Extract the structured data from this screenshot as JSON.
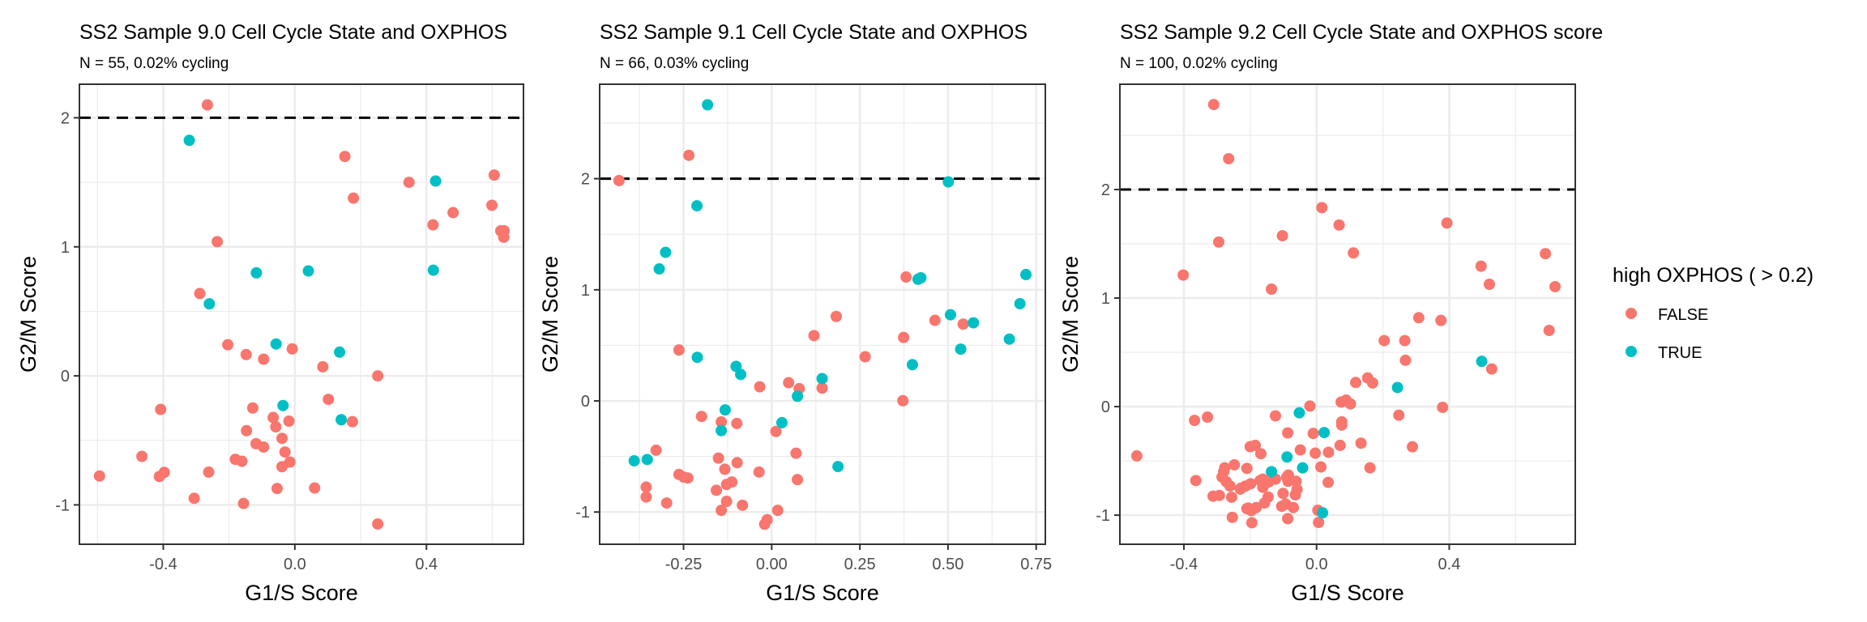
{
  "chart_data": [
    {
      "type": "scatter",
      "title": "SS2 Sample 9.0 Cell Cycle State and OXPHOS",
      "subtitle": "N = 55, 0.02% cycling",
      "xlabel": "G1/S Score",
      "ylabel": "G2/M Score",
      "xlim": [
        -0.655,
        0.695
      ],
      "ylim": [
        -1.305,
        2.26
      ],
      "xticks": [
        -0.4,
        0.0,
        0.4
      ],
      "xtick_labels": [
        "-0.4",
        "0.0",
        "0.4"
      ],
      "xminor": [
        -0.6,
        -0.2,
        0.2,
        0.6
      ],
      "yticks": [
        -1,
        0,
        1,
        2
      ],
      "ytick_labels": [
        "-1",
        "0",
        "1",
        "2"
      ],
      "yminor": [
        -0.5,
        0.5,
        1.5
      ],
      "threshold_line": {
        "y": 2,
        "style": "dashed"
      },
      "grid": true,
      "series": [
        {
          "name": "FALSE",
          "points": [
            [
              -0.266,
              2.1
            ],
            [
              0.152,
              1.7
            ],
            [
              0.347,
              1.5
            ],
            [
              0.606,
              1.556
            ],
            [
              0.178,
              1.377
            ],
            [
              0.599,
              1.322
            ],
            [
              0.481,
              1.265
            ],
            [
              0.42,
              1.17
            ],
            [
              0.626,
              1.124
            ],
            [
              0.636,
              1.124
            ],
            [
              0.635,
              1.074
            ],
            [
              -0.236,
              1.04
            ],
            [
              -0.289,
              0.638
            ],
            [
              -0.204,
              0.241
            ],
            [
              -0.008,
              0.209
            ],
            [
              -0.148,
              0.165
            ],
            [
              -0.095,
              0.129
            ],
            [
              0.085,
              0.07
            ],
            [
              0.252,
              0.0
            ],
            [
              0.102,
              -0.182
            ],
            [
              -0.128,
              -0.249
            ],
            [
              -0.408,
              -0.26
            ],
            [
              -0.066,
              -0.323
            ],
            [
              -0.018,
              -0.351
            ],
            [
              0.175,
              -0.355
            ],
            [
              -0.058,
              -0.395
            ],
            [
              -0.147,
              -0.425
            ],
            [
              -0.039,
              -0.484
            ],
            [
              -0.118,
              -0.526
            ],
            [
              -0.095,
              -0.552
            ],
            [
              -0.03,
              -0.59
            ],
            [
              -0.465,
              -0.624
            ],
            [
              -0.181,
              -0.647
            ],
            [
              -0.161,
              -0.662
            ],
            [
              -0.015,
              -0.668
            ],
            [
              -0.039,
              -0.704
            ],
            [
              -0.397,
              -0.748
            ],
            [
              -0.412,
              -0.78
            ],
            [
              -0.262,
              -0.746
            ],
            [
              -0.594,
              -0.776
            ],
            [
              -0.054,
              -0.873
            ],
            [
              0.06,
              -0.869
            ],
            [
              -0.306,
              -0.949
            ],
            [
              -0.156,
              -0.989
            ],
            [
              0.252,
              -1.148
            ]
          ]
        },
        {
          "name": "TRUE",
          "points": [
            [
              -0.321,
              1.825
            ],
            [
              0.428,
              1.51
            ],
            [
              -0.117,
              0.798
            ],
            [
              0.041,
              0.813
            ],
            [
              0.421,
              0.819
            ],
            [
              -0.26,
              0.558
            ],
            [
              -0.057,
              0.247
            ],
            [
              0.136,
              0.184
            ],
            [
              -0.036,
              -0.23
            ],
            [
              0.141,
              -0.34
            ]
          ]
        }
      ]
    },
    {
      "type": "scatter",
      "title": "SS2 Sample 9.1 Cell Cycle State and OXPHOS",
      "subtitle": "N = 66, 0.03% cycling",
      "xlabel": "G1/S Score",
      "ylabel": "G2/M Score",
      "xlim": [
        -0.488,
        0.776
      ],
      "ylim": [
        -1.29,
        2.85
      ],
      "xticks": [
        -0.25,
        0.0,
        0.25,
        0.5,
        0.75
      ],
      "xtick_labels": [
        "-0.25",
        "0.00",
        "0.25",
        "0.50",
        "0.75"
      ],
      "xminor": [
        -0.375,
        -0.125,
        0.125,
        0.375,
        0.625
      ],
      "yticks": [
        -1,
        0,
        1,
        2
      ],
      "ytick_labels": [
        "-1",
        "0",
        "1",
        "2"
      ],
      "yminor": [
        -0.5,
        0.5,
        1.5,
        2.5
      ],
      "threshold_line": {
        "y": 2,
        "style": "dashed"
      },
      "grid": true,
      "series": [
        {
          "name": "FALSE",
          "points": [
            [
              -0.235,
              2.21
            ],
            [
              -0.433,
              1.983
            ],
            [
              0.381,
              1.115
            ],
            [
              0.183,
              0.76
            ],
            [
              0.463,
              0.725
            ],
            [
              0.543,
              0.691
            ],
            [
              0.12,
              0.588
            ],
            [
              0.374,
              0.571
            ],
            [
              -0.263,
              0.458
            ],
            [
              0.265,
              0.397
            ],
            [
              -0.034,
              0.127
            ],
            [
              0.048,
              0.164
            ],
            [
              0.078,
              0.11
            ],
            [
              0.143,
              0.115
            ],
            [
              0.372,
              0.002
            ],
            [
              -0.199,
              -0.14
            ],
            [
              -0.143,
              -0.189
            ],
            [
              -0.099,
              -0.203
            ],
            [
              0.012,
              -0.275
            ],
            [
              -0.328,
              -0.444
            ],
            [
              -0.151,
              -0.515
            ],
            [
              0.069,
              -0.471
            ],
            [
              -0.098,
              -0.556
            ],
            [
              -0.133,
              -0.615
            ],
            [
              -0.036,
              -0.64
            ],
            [
              -0.263,
              -0.662
            ],
            [
              -0.249,
              -0.686
            ],
            [
              -0.238,
              -0.694
            ],
            [
              -0.113,
              -0.73
            ],
            [
              -0.128,
              -0.752
            ],
            [
              0.073,
              -0.708
            ],
            [
              -0.356,
              -0.775
            ],
            [
              -0.157,
              -0.804
            ],
            [
              -0.356,
              -0.865
            ],
            [
              -0.298,
              -0.919
            ],
            [
              -0.128,
              -0.904
            ],
            [
              -0.083,
              -0.939
            ],
            [
              -0.143,
              -0.985
            ],
            [
              0.017,
              -0.985
            ],
            [
              -0.013,
              -1.069
            ],
            [
              -0.02,
              -1.11
            ]
          ]
        },
        {
          "name": "TRUE",
          "points": [
            [
              -0.182,
              2.665
            ],
            [
              0.501,
              1.971
            ],
            [
              -0.212,
              1.756
            ],
            [
              -0.301,
              1.337
            ],
            [
              -0.319,
              1.188
            ],
            [
              0.415,
              1.095
            ],
            [
              0.423,
              1.108
            ],
            [
              0.721,
              1.137
            ],
            [
              0.704,
              0.875
            ],
            [
              0.507,
              0.775
            ],
            [
              0.572,
              0.703
            ],
            [
              0.674,
              0.556
            ],
            [
              0.536,
              0.466
            ],
            [
              -0.211,
              0.392
            ],
            [
              0.399,
              0.326
            ],
            [
              -0.101,
              0.311
            ],
            [
              -0.088,
              0.238
            ],
            [
              0.143,
              0.201
            ],
            [
              0.073,
              0.042
            ],
            [
              -0.132,
              -0.081
            ],
            [
              -0.143,
              -0.267
            ],
            [
              0.029,
              -0.196
            ],
            [
              -0.39,
              -0.539
            ],
            [
              -0.353,
              -0.527
            ],
            [
              0.188,
              -0.591
            ]
          ]
        }
      ]
    },
    {
      "type": "scatter",
      "title": "SS2 Sample 9.2 Cell Cycle State and OXPHOS score",
      "subtitle": "N = 100, 0.02% cycling",
      "xlabel": "G1/S Score",
      "ylabel": "G2/M Score",
      "xlim": [
        -0.593,
        0.78
      ],
      "ylim": [
        -1.268,
        2.97
      ],
      "xticks": [
        -0.4,
        0.0,
        0.4
      ],
      "xtick_labels": [
        "-0.4",
        "0.0",
        "0.4"
      ],
      "xminor": [
        -0.2,
        0.2,
        0.6
      ],
      "yticks": [
        -1,
        0,
        1,
        2
      ],
      "ytick_labels": [
        "-1",
        "0",
        "1",
        "2"
      ],
      "yminor": [
        -0.5,
        0.5,
        1.5,
        2.5
      ],
      "threshold_line": {
        "y": 2,
        "style": "dashed"
      },
      "grid": true,
      "series": [
        {
          "name": "FALSE",
          "points": [
            [
              -0.31,
              2.783
            ],
            [
              -0.265,
              2.284
            ],
            [
              0.016,
              1.833
            ],
            [
              0.068,
              1.673
            ],
            [
              0.393,
              1.691
            ],
            [
              -0.103,
              1.574
            ],
            [
              -0.295,
              1.516
            ],
            [
              0.111,
              1.416
            ],
            [
              0.69,
              1.409
            ],
            [
              0.496,
              1.294
            ],
            [
              -0.402,
              1.212
            ],
            [
              0.521,
              1.127
            ],
            [
              0.719,
              1.105
            ],
            [
              -0.136,
              1.082
            ],
            [
              0.308,
              0.819
            ],
            [
              0.375,
              0.794
            ],
            [
              0.701,
              0.702
            ],
            [
              0.204,
              0.608
            ],
            [
              0.266,
              0.608
            ],
            [
              0.268,
              0.427
            ],
            [
              0.528,
              0.347
            ],
            [
              0.118,
              0.222
            ],
            [
              0.154,
              0.264
            ],
            [
              0.169,
              0.218
            ],
            [
              0.074,
              0.042
            ],
            [
              0.089,
              0.06
            ],
            [
              0.102,
              0.025
            ],
            [
              0.38,
              -0.007
            ],
            [
              -0.02,
              0.005
            ],
            [
              0.248,
              -0.079
            ],
            [
              -0.542,
              -0.454
            ],
            [
              -0.368,
              -0.127
            ],
            [
              -0.329,
              -0.097
            ],
            [
              -0.124,
              -0.085
            ],
            [
              -0.087,
              -0.242
            ],
            [
              -0.01,
              -0.247
            ],
            [
              0.076,
              -0.14
            ],
            [
              0.076,
              -0.17
            ],
            [
              -0.2,
              -0.369
            ],
            [
              -0.185,
              -0.357
            ],
            [
              -0.168,
              -0.434
            ],
            [
              -0.049,
              -0.399
            ],
            [
              -0.004,
              -0.429
            ],
            [
              0.036,
              -0.421
            ],
            [
              0.071,
              -0.357
            ],
            [
              0.134,
              -0.337
            ],
            [
              0.289,
              -0.37
            ],
            [
              -0.277,
              -0.564
            ],
            [
              -0.248,
              -0.536
            ],
            [
              -0.21,
              -0.569
            ],
            [
              0.013,
              -0.556
            ],
            [
              0.161,
              -0.564
            ],
            [
              -0.364,
              -0.681
            ],
            [
              -0.285,
              -0.648
            ],
            [
              -0.272,
              -0.693
            ],
            [
              -0.261,
              -0.731
            ],
            [
              -0.228,
              -0.751
            ],
            [
              -0.215,
              -0.733
            ],
            [
              -0.199,
              -0.711
            ],
            [
              -0.162,
              -0.668
            ],
            [
              -0.162,
              -0.743
            ],
            [
              -0.144,
              -0.693
            ],
            [
              -0.124,
              -0.668
            ],
            [
              -0.085,
              -0.631
            ],
            [
              -0.086,
              -0.688
            ],
            [
              -0.062,
              -0.688
            ],
            [
              -0.059,
              -0.763
            ],
            [
              -0.064,
              -0.813
            ],
            [
              -0.101,
              -0.8
            ],
            [
              0.035,
              -0.698
            ],
            [
              -0.312,
              -0.825
            ],
            [
              -0.293,
              -0.818
            ],
            [
              -0.256,
              -0.835
            ],
            [
              -0.146,
              -0.833
            ],
            [
              -0.157,
              -0.888
            ],
            [
              -0.206,
              -0.935
            ],
            [
              -0.197,
              -0.958
            ],
            [
              -0.182,
              -0.93
            ],
            [
              -0.105,
              -0.918
            ],
            [
              -0.093,
              -0.898
            ],
            [
              -0.07,
              -0.93
            ],
            [
              0.004,
              -0.955
            ],
            [
              -0.254,
              -1.02
            ],
            [
              -0.195,
              -1.07
            ],
            [
              -0.087,
              -1.032
            ],
            [
              0.006,
              -1.067
            ],
            [
              -0.28,
              -0.6
            ],
            [
              -0.15,
              -0.7
            ],
            [
              -0.21,
              -0.94
            ],
            [
              -0.09,
              -0.65
            ],
            [
              -0.23,
              -0.76
            ],
            [
              -0.17,
              -0.68
            ]
          ]
        },
        {
          "name": "TRUE",
          "points": [
            [
              0.498,
              0.417
            ],
            [
              0.244,
              0.176
            ],
            [
              -0.052,
              -0.057
            ],
            [
              0.023,
              -0.239
            ],
            [
              -0.089,
              -0.464
            ],
            [
              -0.042,
              -0.564
            ],
            [
              -0.136,
              -0.599
            ],
            [
              0.018,
              -0.978
            ]
          ]
        }
      ]
    }
  ],
  "legend": {
    "title": "high OXPHOS ( > 0.2)",
    "position": "right",
    "items": [
      {
        "label": "FALSE",
        "color": "#F8766D"
      },
      {
        "label": "TRUE",
        "color": "#00BFC4"
      }
    ]
  },
  "colors": {
    "FALSE": "#F8766D",
    "TRUE": "#00BFC4",
    "grid_major": "#EBEBEB",
    "panel_border": "#333333",
    "threshold": "#000000"
  }
}
